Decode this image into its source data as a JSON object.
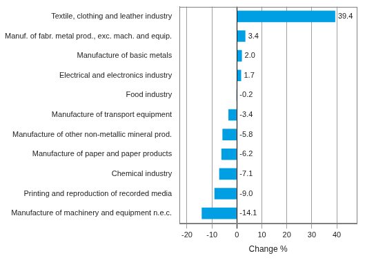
{
  "chart_data": {
    "type": "bar",
    "orientation": "horizontal",
    "categories": [
      "Textile, clothing and leather industry",
      "Manuf. of fabr. metal prod., exc. mach. and equip.",
      "Manufacture of basic metals",
      "Electrical and electronics industry",
      "Food industry",
      "Manufacture of transport equipment",
      "Manufacture of other non-metallic mineral prod.",
      "Manufacture of paper and paper products",
      "Chemical industry",
      "Printing and reproduction of recorded media",
      "Manufacture of machinery and equipment n.e.c."
    ],
    "values": [
      39.4,
      3.4,
      2.0,
      1.7,
      -0.2,
      -3.4,
      -5.8,
      -6.2,
      -7.1,
      -9.0,
      -14.1
    ],
    "value_labels": [
      "39.4",
      "3.4",
      "2.0",
      "1.7",
      "-0.2",
      "-3.4",
      "-5.8",
      "-6.2",
      "-7.1",
      "-9.0",
      "-14.1"
    ],
    "color": "#009fe3",
    "xlabel": "Change %",
    "xlim": [
      -23,
      48
    ],
    "xticks": [
      -20,
      -10,
      0,
      10,
      20,
      30,
      40
    ],
    "grid": true,
    "data_labels": true
  }
}
